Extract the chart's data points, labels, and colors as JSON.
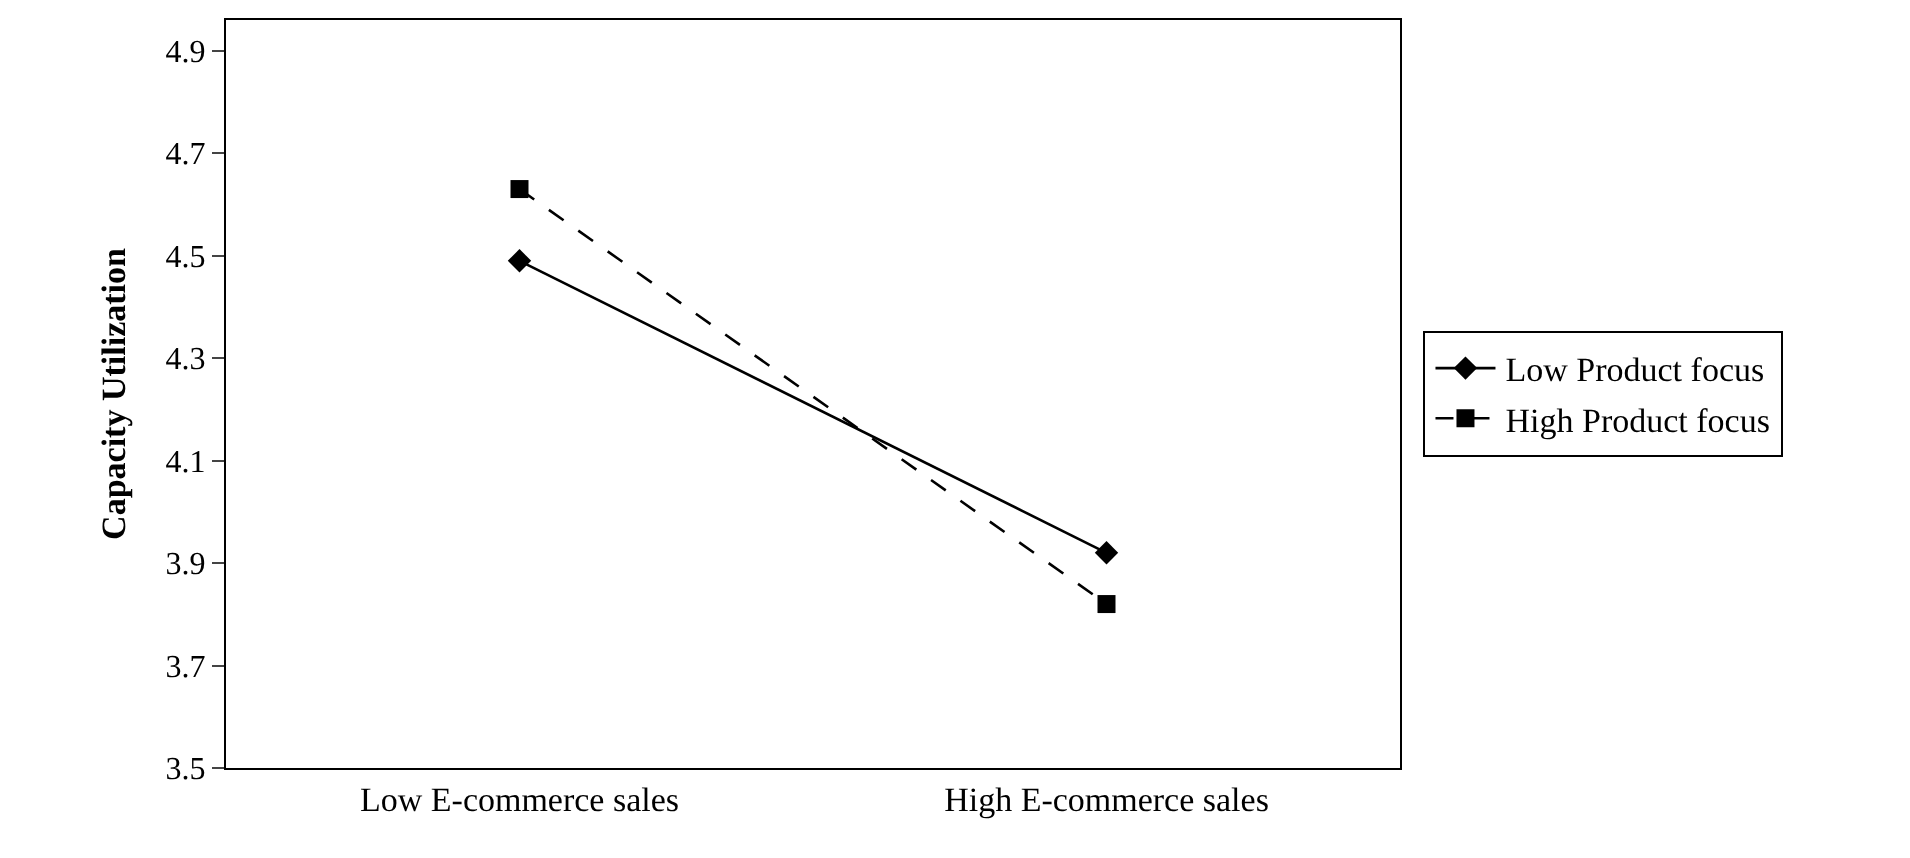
{
  "chart_data": {
    "type": "line",
    "ylabel": "Capacity Utilization",
    "categories": [
      "Low E-commerce sales",
      "High E-commerce sales"
    ],
    "series": [
      {
        "name": "Low Product focus",
        "color": "#000000",
        "values": [
          4.49,
          3.92
        ],
        "marker": "diamond",
        "line_style": "solid"
      },
      {
        "name": "High Product focus",
        "color": "#000000",
        "values": [
          4.63,
          3.82
        ],
        "marker": "square",
        "line_style": "dashed"
      }
    ],
    "ylim": [
      3.5,
      4.96
    ],
    "yticks": [
      3.5,
      3.7,
      3.9,
      4.1,
      4.3,
      4.5,
      4.7,
      4.9
    ],
    "legend": "right"
  }
}
